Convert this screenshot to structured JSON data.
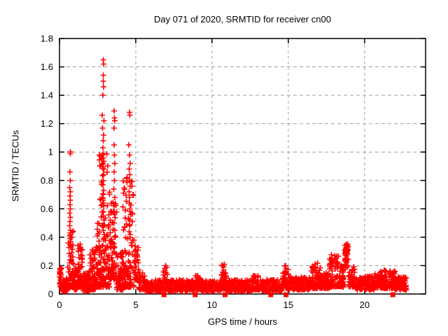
{
  "title": "Day 071 of 2020, SRMTID for receiver cn00",
  "axes": {
    "xlabel": "GPS time / hours",
    "ylabel": "SRMTID / TECUs"
  },
  "colors": {
    "marker": "#ff0000",
    "grid": "#a0a0a0",
    "border": "#000000",
    "background": "#ffffff",
    "text": "#000000"
  },
  "chart_data": {
    "type": "scatter",
    "title": "Day 071 of 2020, SRMTID for receiver cn00",
    "xlabel": "GPS time / hours",
    "ylabel": "SRMTID / TECUs",
    "xlim": [
      0,
      24
    ],
    "ylim": [
      0,
      1.8
    ],
    "xtick_labels": [
      "0",
      "5",
      "10",
      "15",
      "20"
    ],
    "ytick_labels": [
      "0",
      "0.2",
      "0.4",
      "0.6",
      "0.8",
      "1",
      "1.2",
      "1.4",
      "1.6",
      "1.8"
    ],
    "grid": true,
    "legend": "none",
    "seed": 1337,
    "series": [
      {
        "name": "srmtid-plus-markers",
        "marker": "plus",
        "color": "#ff0000",
        "envelope_segments": [
          [
            0.0,
            0.15,
            25,
            0.05,
            0.19,
            1.2
          ],
          [
            0.15,
            0.55,
            50,
            0.02,
            0.12,
            1.6
          ],
          [
            0.55,
            0.95,
            60,
            0.05,
            0.45,
            1.8
          ],
          [
            0.95,
            1.2,
            40,
            0.03,
            0.18,
            1.6
          ],
          [
            1.2,
            1.55,
            50,
            0.05,
            0.35,
            1.8
          ],
          [
            1.55,
            1.95,
            60,
            0.02,
            0.15,
            1.6
          ],
          [
            1.95,
            2.35,
            60,
            0.03,
            0.32,
            1.9
          ],
          [
            2.35,
            2.6,
            40,
            0.05,
            0.5,
            2.0
          ],
          [
            2.6,
            3.3,
            140,
            0.05,
            1.0,
            2.2
          ],
          [
            3.3,
            3.75,
            70,
            0.1,
            0.65,
            1.9
          ],
          [
            3.75,
            4.15,
            60,
            0.03,
            0.3,
            1.8
          ],
          [
            4.15,
            4.9,
            110,
            0.05,
            0.85,
            2.2
          ],
          [
            4.9,
            5.2,
            40,
            0.1,
            0.35,
            1.7
          ],
          [
            5.2,
            5.6,
            40,
            0.03,
            0.15,
            1.6
          ],
          [
            5.6,
            6.8,
            110,
            0.02,
            0.1,
            1.5
          ],
          [
            6.8,
            7.1,
            40,
            0.03,
            0.2,
            1.8
          ],
          [
            7.1,
            8.9,
            160,
            0.02,
            0.1,
            1.5
          ],
          [
            8.9,
            9.3,
            50,
            0.03,
            0.13,
            1.6
          ],
          [
            9.3,
            10.6,
            120,
            0.02,
            0.1,
            1.5
          ],
          [
            10.6,
            10.95,
            45,
            0.04,
            0.21,
            1.7
          ],
          [
            10.95,
            12.6,
            150,
            0.02,
            0.1,
            1.5
          ],
          [
            12.6,
            13.1,
            60,
            0.03,
            0.13,
            1.6
          ],
          [
            13.1,
            14.6,
            130,
            0.02,
            0.1,
            1.5
          ],
          [
            14.6,
            15.0,
            50,
            0.04,
            0.2,
            1.7
          ],
          [
            15.0,
            16.4,
            130,
            0.03,
            0.12,
            1.5
          ],
          [
            16.4,
            17.1,
            80,
            0.04,
            0.22,
            1.7
          ],
          [
            17.1,
            17.7,
            70,
            0.04,
            0.15,
            1.6
          ],
          [
            17.7,
            18.35,
            70,
            0.05,
            0.28,
            1.7
          ],
          [
            18.35,
            18.65,
            50,
            0.05,
            0.2,
            1.6
          ],
          [
            18.7,
            18.95,
            45,
            0.18,
            0.35,
            0.8
          ],
          [
            18.95,
            19.4,
            50,
            0.05,
            0.2,
            1.7
          ],
          [
            19.4,
            20.6,
            120,
            0.03,
            0.13,
            1.5
          ],
          [
            20.6,
            21.3,
            80,
            0.04,
            0.16,
            1.5
          ],
          [
            21.3,
            22.0,
            80,
            0.04,
            0.17,
            1.5
          ],
          [
            22.0,
            22.75,
            80,
            0.03,
            0.12,
            1.4
          ]
        ],
        "peak_points": [
          [
            2.87,
            1.65
          ],
          [
            2.88,
            1.62
          ],
          [
            2.86,
            1.54
          ],
          [
            2.87,
            1.5
          ],
          [
            2.88,
            1.46
          ],
          [
            2.85,
            1.4
          ],
          [
            2.8,
            1.26
          ],
          [
            2.92,
            1.22
          ],
          [
            2.83,
            1.17
          ],
          [
            2.89,
            1.12
          ],
          [
            2.86,
            1.08
          ],
          [
            2.84,
            1.03
          ],
          [
            2.9,
            0.99
          ],
          [
            2.87,
            0.96
          ],
          [
            2.85,
            0.92
          ],
          [
            2.91,
            0.88
          ],
          [
            2.88,
            0.84
          ],
          [
            2.86,
            0.8
          ],
          [
            2.84,
            0.77
          ],
          [
            2.89,
            0.73
          ],
          [
            2.87,
            0.7
          ],
          [
            2.85,
            0.66
          ],
          [
            2.9,
            0.62
          ],
          [
            2.88,
            0.58
          ],
          [
            2.86,
            0.55
          ],
          [
            2.91,
            0.52
          ],
          [
            2.89,
            0.48
          ],
          [
            2.87,
            0.45
          ],
          [
            2.93,
            0.42
          ],
          [
            2.95,
            0.4
          ],
          [
            3.58,
            1.29
          ],
          [
            3.6,
            1.24
          ],
          [
            3.62,
            1.22
          ],
          [
            3.59,
            1.17
          ],
          [
            3.57,
            1.05
          ],
          [
            3.61,
            0.98
          ],
          [
            3.63,
            0.92
          ],
          [
            3.58,
            0.86
          ],
          [
            3.6,
            0.8
          ],
          [
            3.56,
            0.74
          ],
          [
            3.62,
            0.68
          ],
          [
            3.59,
            0.62
          ],
          [
            3.61,
            0.56
          ],
          [
            3.57,
            0.5
          ],
          [
            3.63,
            0.45
          ],
          [
            3.65,
            0.4
          ],
          [
            4.58,
            1.28
          ],
          [
            4.62,
            1.26
          ],
          [
            4.55,
            1.05
          ],
          [
            4.6,
            0.98
          ],
          [
            4.64,
            0.92
          ],
          [
            4.57,
            0.88
          ],
          [
            4.61,
            0.84
          ],
          [
            4.59,
            0.8
          ],
          [
            4.63,
            0.76
          ],
          [
            4.56,
            0.72
          ],
          [
            4.6,
            0.68
          ],
          [
            4.58,
            0.64
          ],
          [
            4.62,
            0.6
          ],
          [
            4.65,
            0.56
          ],
          [
            4.59,
            0.52
          ],
          [
            4.61,
            0.48
          ],
          [
            4.57,
            0.44
          ],
          [
            4.63,
            0.4
          ],
          [
            4.7,
            0.36
          ],
          [
            4.75,
            0.34
          ],
          [
            0.7,
            1.0
          ],
          [
            0.72,
            0.99
          ],
          [
            0.68,
            0.86
          ],
          [
            0.7,
            0.8
          ],
          [
            0.67,
            0.75
          ],
          [
            0.71,
            0.72
          ],
          [
            0.69,
            0.69
          ],
          [
            0.72,
            0.66
          ],
          [
            0.68,
            0.63
          ],
          [
            0.7,
            0.6
          ],
          [
            0.66,
            0.57
          ],
          [
            0.71,
            0.54
          ],
          [
            0.69,
            0.51
          ],
          [
            0.67,
            0.48
          ],
          [
            0.72,
            0.45
          ],
          [
            0.7,
            0.42
          ],
          [
            0.68,
            0.39
          ],
          [
            0.73,
            0.37
          ],
          [
            18.82,
            0.35
          ],
          [
            18.85,
            0.34
          ],
          [
            18.8,
            0.33
          ],
          [
            18.87,
            0.33
          ],
          [
            18.84,
            0.32
          ],
          [
            18.83,
            0.31
          ],
          [
            18.86,
            0.3
          ],
          [
            18.81,
            0.29
          ],
          [
            18.88,
            0.28
          ],
          [
            18.8,
            0.27
          ],
          [
            18.05,
            0.27
          ],
          [
            18.1,
            0.25
          ],
          [
            18.0,
            0.24
          ],
          [
            17.95,
            0.22
          ],
          [
            18.15,
            0.22
          ],
          [
            16.75,
            0.21
          ],
          [
            16.7,
            0.19
          ],
          [
            16.8,
            0.18
          ],
          [
            6.95,
            0.2
          ],
          [
            6.9,
            0.18
          ],
          [
            10.8,
            0.21
          ],
          [
            10.75,
            0.19
          ],
          [
            14.8,
            0.2
          ],
          [
            14.85,
            0.18
          ],
          [
            0.02,
            0.18
          ],
          [
            0.04,
            0.17
          ],
          [
            0.05,
            0.15
          ],
          [
            1.35,
            0.35
          ],
          [
            1.38,
            0.33
          ],
          [
            2.15,
            0.31
          ],
          [
            2.2,
            0.3
          ]
        ]
      },
      {
        "name": "zero-flag-squares",
        "marker": "filled-square",
        "color": "#ff0000",
        "points": [
          [
            6.85,
            0
          ],
          [
            8.9,
            0
          ],
          [
            10.85,
            0
          ],
          [
            13.85,
            0
          ],
          [
            14.85,
            0
          ],
          [
            21.85,
            0
          ]
        ]
      }
    ]
  }
}
